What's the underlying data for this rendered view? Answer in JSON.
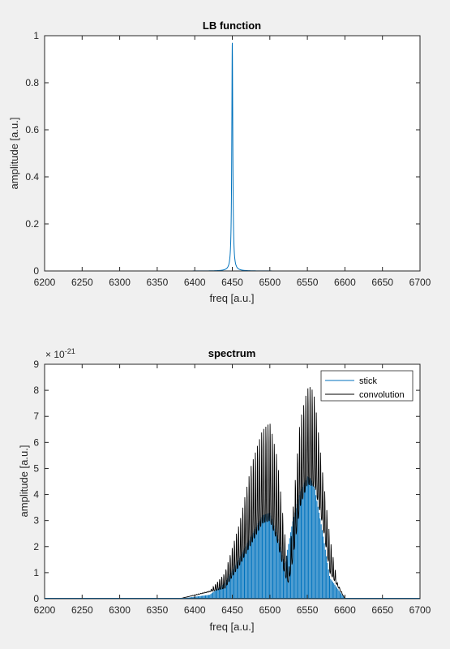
{
  "chart_data": [
    {
      "type": "line",
      "title": "LB function",
      "xlabel": "freq [a.u.]",
      "ylabel": "amplitude [a.u.]",
      "xlim": [
        6200,
        6700
      ],
      "ylim": [
        0,
        1
      ],
      "xticks": [
        6200,
        6250,
        6300,
        6350,
        6400,
        6450,
        6500,
        6550,
        6600,
        6650,
        6700
      ],
      "yticks": [
        "0",
        "0.2",
        "0.4",
        "0.6",
        "0.8",
        "1"
      ],
      "grid": false,
      "series": [
        {
          "color": "#0072bd",
          "shape": "lorentzian",
          "center": 6450,
          "peak": 0.97,
          "hwhm": 0.8
        }
      ]
    },
    {
      "type": "line",
      "title": "spectrum",
      "xlabel": "freq [a.u.]",
      "ylabel": "amplitude [a.u.]",
      "xlim": [
        6200,
        6700
      ],
      "ylim": [
        0,
        9
      ],
      "y_exponent_label": "× 10",
      "y_exponent": "-21",
      "xticks": [
        6200,
        6250,
        6300,
        6350,
        6400,
        6450,
        6500,
        6550,
        6600,
        6650,
        6700
      ],
      "yticks": [
        "0",
        "1",
        "2",
        "3",
        "4",
        "5",
        "6",
        "7",
        "8",
        "9"
      ],
      "grid": false,
      "legend_position": "top-right",
      "series": [
        {
          "name": "stick",
          "color": "#0072bd",
          "style": "stick",
          "envelope_x": [
            6380,
            6420,
            6440,
            6460,
            6475,
            6490,
            6500,
            6510,
            6520,
            6530,
            6540,
            6550,
            6555,
            6560,
            6570,
            6580,
            6600
          ],
          "envelope_y": [
            0,
            0.15,
            0.6,
            1.6,
            2.4,
            3.2,
            3.3,
            2.4,
            1.3,
            2.9,
            4.1,
            4.7,
            4.6,
            4.2,
            2.6,
            0.8,
            0
          ]
        },
        {
          "name": "convolution",
          "color": "#000000",
          "style": "line",
          "envelope_x": [
            6380,
            6420,
            6440,
            6460,
            6475,
            6490,
            6500,
            6510,
            6520,
            6525,
            6530,
            6540,
            6550,
            6555,
            6560,
            6570,
            6580,
            6590,
            6600
          ],
          "envelope_y": [
            0,
            0.3,
            1.0,
            3.0,
            5.2,
            6.6,
            6.9,
            5.5,
            2.5,
            1.0,
            3.2,
            6.9,
            8.2,
            8.3,
            7.8,
            5.0,
            2.4,
            0.6,
            0
          ],
          "baseline_x": [
            6380,
            6440,
            6460,
            6490,
            6500,
            6510,
            6520,
            6525,
            6530,
            6540,
            6550,
            6560,
            6570,
            6580,
            6600
          ],
          "baseline_y": [
            0,
            0.4,
            1.3,
            2.9,
            3.0,
            2.2,
            0.9,
            0.6,
            1.4,
            3.5,
            4.4,
            4.3,
            2.9,
            1.0,
            0
          ]
        }
      ]
    }
  ]
}
